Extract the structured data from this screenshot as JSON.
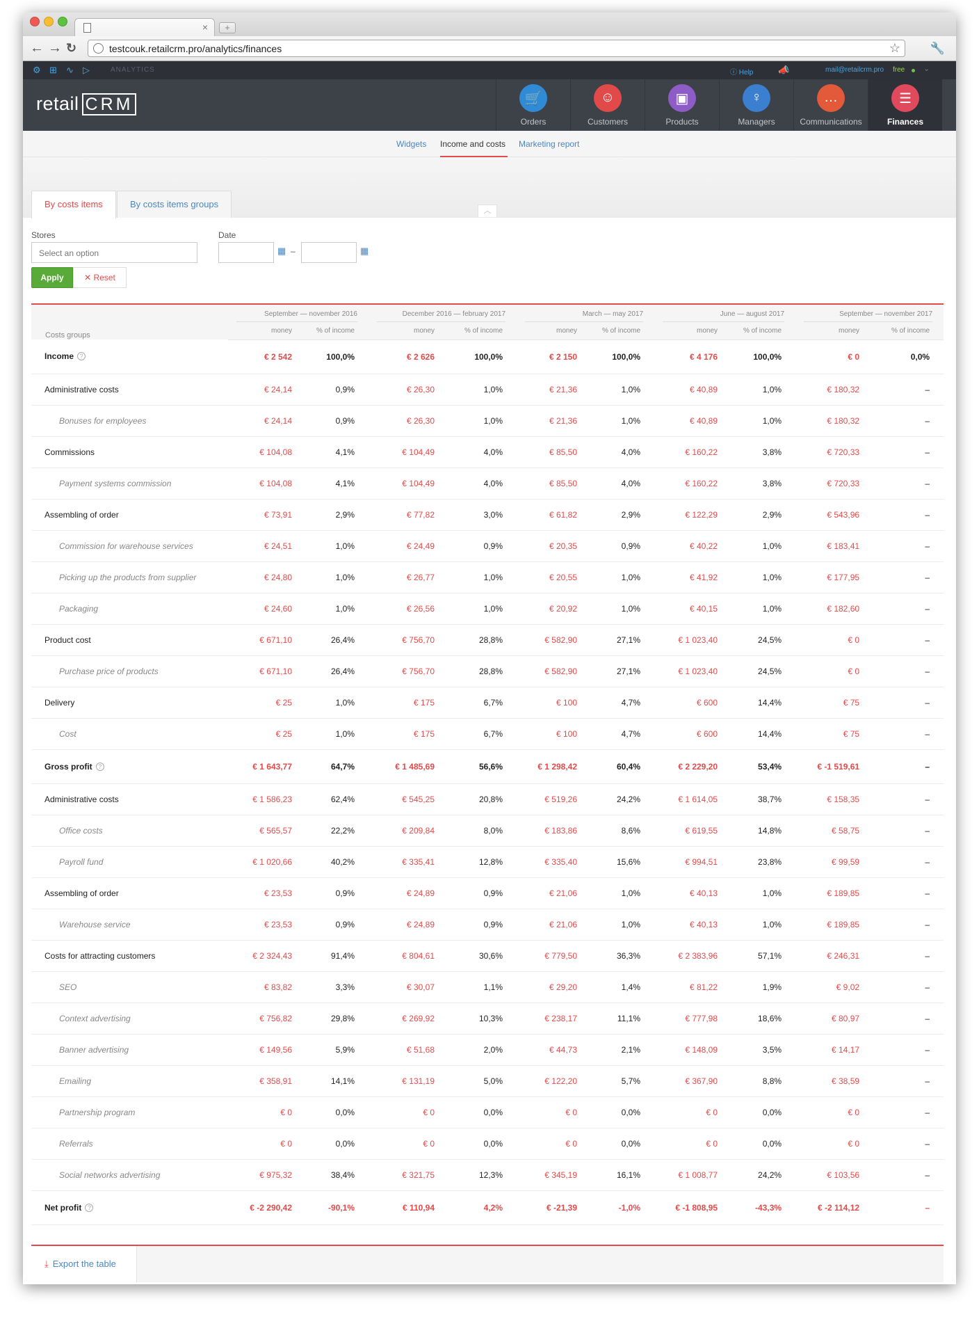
{
  "browser": {
    "url": "testcouk.retailcrm.pro/analytics/finances"
  },
  "crm": {
    "section_label": "ANALYTICS",
    "help": "Help",
    "user_email": "mail@retailcrm.pro",
    "plan": "free",
    "logo_main": "retail",
    "logo_crm": "CRM",
    "modules": [
      {
        "label": "Orders",
        "color": "#2f8bd6",
        "icon": "cart-icon"
      },
      {
        "label": "Customers",
        "color": "#e24a4a",
        "icon": "person-icon"
      },
      {
        "label": "Products",
        "color": "#8e5cc6",
        "icon": "box-icon"
      },
      {
        "label": "Managers",
        "color": "#3a7fd0",
        "icon": "manager-icon"
      },
      {
        "label": "Communications",
        "color": "#e25a3a",
        "icon": "chat-icon"
      },
      {
        "label": "Finances",
        "color": "#e04a5c",
        "icon": "ledger-icon"
      }
    ]
  },
  "subnav": {
    "widgets": "Widgets",
    "income": "Income and costs",
    "marketing": "Marketing report"
  },
  "filter_tabs": {
    "by_items": "By costs items",
    "by_groups": "By costs items groups"
  },
  "filters": {
    "stores_label": "Stores",
    "stores_placeholder": "Select an option",
    "date_label": "Date",
    "date_sep": "–",
    "apply": "Apply",
    "reset": "Reset"
  },
  "table": {
    "groups_header": "Costs groups",
    "money_header": "money",
    "pct_header": "% of income",
    "periods": [
      "September — november 2016",
      "December 2016 — february 2017",
      "March — may 2017",
      "June — august 2017",
      "September — november 2017"
    ],
    "rows": [
      {
        "name": "Income",
        "level": "big",
        "help": true,
        "cells": [
          "€ 2 542",
          "100,0%",
          "€ 2 626",
          "100,0%",
          "€ 2 150",
          "100,0%",
          "€ 4 176",
          "100,0%",
          "€ 0",
          "0,0%"
        ]
      },
      {
        "name": "Administrative costs",
        "level": "group",
        "cells": [
          "€ 24,14",
          "0,9%",
          "€ 26,30",
          "1,0%",
          "€ 21,36",
          "1,0%",
          "€ 40,89",
          "1,0%",
          "€ 180,32",
          "–"
        ]
      },
      {
        "name": "Bonuses for employees",
        "level": "sub",
        "cells": [
          "€ 24,14",
          "0,9%",
          "€ 26,30",
          "1,0%",
          "€ 21,36",
          "1,0%",
          "€ 40,89",
          "1,0%",
          "€ 180,32",
          "–"
        ]
      },
      {
        "name": "Commissions",
        "level": "group",
        "cells": [
          "€ 104,08",
          "4,1%",
          "€ 104,49",
          "4,0%",
          "€ 85,50",
          "4,0%",
          "€ 160,22",
          "3,8%",
          "€ 720,33",
          "–"
        ]
      },
      {
        "name": "Payment systems commission",
        "level": "sub",
        "cells": [
          "€ 104,08",
          "4,1%",
          "€ 104,49",
          "4,0%",
          "€ 85,50",
          "4,0%",
          "€ 160,22",
          "3,8%",
          "€ 720,33",
          "–"
        ]
      },
      {
        "name": "Assembling of order",
        "level": "group",
        "cells": [
          "€ 73,91",
          "2,9%",
          "€ 77,82",
          "3,0%",
          "€ 61,82",
          "2,9%",
          "€ 122,29",
          "2,9%",
          "€ 543,96",
          "–"
        ]
      },
      {
        "name": "Commission for warehouse services",
        "level": "sub",
        "cells": [
          "€ 24,51",
          "1,0%",
          "€ 24,49",
          "0,9%",
          "€ 20,35",
          "0,9%",
          "€ 40,22",
          "1,0%",
          "€ 183,41",
          "–"
        ]
      },
      {
        "name": "Picking up the products from supplier",
        "level": "sub",
        "cells": [
          "€ 24,80",
          "1,0%",
          "€ 26,77",
          "1,0%",
          "€ 20,55",
          "1,0%",
          "€ 41,92",
          "1,0%",
          "€ 177,95",
          "–"
        ]
      },
      {
        "name": "Packaging",
        "level": "sub",
        "cells": [
          "€ 24,60",
          "1,0%",
          "€ 26,56",
          "1,0%",
          "€ 20,92",
          "1,0%",
          "€ 40,15",
          "1,0%",
          "€ 182,60",
          "–"
        ]
      },
      {
        "name": "Product cost",
        "level": "group",
        "cells": [
          "€ 671,10",
          "26,4%",
          "€ 756,70",
          "28,8%",
          "€ 582,90",
          "27,1%",
          "€ 1 023,40",
          "24,5%",
          "€ 0",
          "–"
        ]
      },
      {
        "name": "Purchase price of products",
        "level": "sub",
        "cells": [
          "€ 671,10",
          "26,4%",
          "€ 756,70",
          "28,8%",
          "€ 582,90",
          "27,1%",
          "€ 1 023,40",
          "24,5%",
          "€ 0",
          "–"
        ]
      },
      {
        "name": "Delivery",
        "level": "group",
        "cells": [
          "€ 25",
          "1,0%",
          "€ 175",
          "6,7%",
          "€ 100",
          "4,7%",
          "€ 600",
          "14,4%",
          "€ 75",
          "–"
        ]
      },
      {
        "name": "Cost",
        "level": "sub",
        "cells": [
          "€ 25",
          "1,0%",
          "€ 175",
          "6,7%",
          "€ 100",
          "4,7%",
          "€ 600",
          "14,4%",
          "€ 75",
          "–"
        ]
      },
      {
        "name": "Gross profit",
        "level": "big",
        "help": true,
        "cells": [
          "€ 1 643,77",
          "64,7%",
          "€ 1 485,69",
          "56,6%",
          "€ 1 298,42",
          "60,4%",
          "€ 2 229,20",
          "53,4%",
          "€ -1 519,61",
          "–"
        ]
      },
      {
        "name": "Administrative costs",
        "level": "group",
        "cells": [
          "€ 1 586,23",
          "62,4%",
          "€ 545,25",
          "20,8%",
          "€ 519,26",
          "24,2%",
          "€ 1 614,05",
          "38,7%",
          "€ 158,35",
          "–"
        ]
      },
      {
        "name": "Office costs",
        "level": "sub",
        "cells": [
          "€ 565,57",
          "22,2%",
          "€ 209,84",
          "8,0%",
          "€ 183,86",
          "8,6%",
          "€ 619,55",
          "14,8%",
          "€ 58,75",
          "–"
        ]
      },
      {
        "name": "Payroll fund",
        "level": "sub",
        "cells": [
          "€ 1 020,66",
          "40,2%",
          "€ 335,41",
          "12,8%",
          "€ 335,40",
          "15,6%",
          "€ 994,51",
          "23,8%",
          "€ 99,59",
          "–"
        ]
      },
      {
        "name": "Assembling of order",
        "level": "group",
        "cells": [
          "€ 23,53",
          "0,9%",
          "€ 24,89",
          "0,9%",
          "€ 21,06",
          "1,0%",
          "€ 40,13",
          "1,0%",
          "€ 189,85",
          "–"
        ]
      },
      {
        "name": "Warehouse service",
        "level": "sub",
        "cells": [
          "€ 23,53",
          "0,9%",
          "€ 24,89",
          "0,9%",
          "€ 21,06",
          "1,0%",
          "€ 40,13",
          "1,0%",
          "€ 189,85",
          "–"
        ]
      },
      {
        "name": "Costs for attracting customers",
        "level": "group",
        "cells": [
          "€ 2 324,43",
          "91,4%",
          "€ 804,61",
          "30,6%",
          "€ 779,50",
          "36,3%",
          "€ 2 383,96",
          "57,1%",
          "€ 246,31",
          "–"
        ]
      },
      {
        "name": "SEO",
        "level": "sub",
        "cells": [
          "€ 83,82",
          "3,3%",
          "€ 30,07",
          "1,1%",
          "€ 29,20",
          "1,4%",
          "€ 81,22",
          "1,9%",
          "€ 9,02",
          "–"
        ]
      },
      {
        "name": "Context advertising",
        "level": "sub",
        "cells": [
          "€ 756,82",
          "29,8%",
          "€ 269,92",
          "10,3%",
          "€ 238,17",
          "11,1%",
          "€ 777,98",
          "18,6%",
          "€ 80,97",
          "–"
        ]
      },
      {
        "name": "Banner advertising",
        "level": "sub",
        "cells": [
          "€ 149,56",
          "5,9%",
          "€ 51,68",
          "2,0%",
          "€ 44,73",
          "2,1%",
          "€ 148,09",
          "3,5%",
          "€ 14,17",
          "–"
        ]
      },
      {
        "name": "Emailing",
        "level": "sub",
        "cells": [
          "€ 358,91",
          "14,1%",
          "€ 131,19",
          "5,0%",
          "€ 122,20",
          "5,7%",
          "€ 367,90",
          "8,8%",
          "€ 38,59",
          "–"
        ]
      },
      {
        "name": "Partnership program",
        "level": "sub",
        "cells": [
          "€ 0",
          "0,0%",
          "€ 0",
          "0,0%",
          "€ 0",
          "0,0%",
          "€ 0",
          "0,0%",
          "€ 0",
          "–"
        ]
      },
      {
        "name": "Referrals",
        "level": "sub",
        "cells": [
          "€ 0",
          "0,0%",
          "€ 0",
          "0,0%",
          "€ 0",
          "0,0%",
          "€ 0",
          "0,0%",
          "€ 0",
          "–"
        ]
      },
      {
        "name": "Social networks advertising",
        "level": "sub",
        "cells": [
          "€ 975,32",
          "38,4%",
          "€ 321,75",
          "12,3%",
          "€ 345,19",
          "16,1%",
          "€ 1 008,77",
          "24,2%",
          "€ 103,56",
          "–"
        ]
      },
      {
        "name": "Net profit",
        "level": "big",
        "help": true,
        "neg": true,
        "cells": [
          "€ -2 290,42",
          "-90,1%",
          "€ 110,94",
          "4,2%",
          "€ -21,39",
          "-1,0%",
          "€ -1 808,95",
          "-43,3%",
          "€ -2 114,12",
          "–"
        ]
      }
    ]
  },
  "footer": {
    "export": "Export the table"
  },
  "colors": {
    "accent_red": "#e34a4a",
    "link_blue": "#4a86c5",
    "apply_green": "#5aaa3a",
    "header_dark": "#3d4249"
  }
}
